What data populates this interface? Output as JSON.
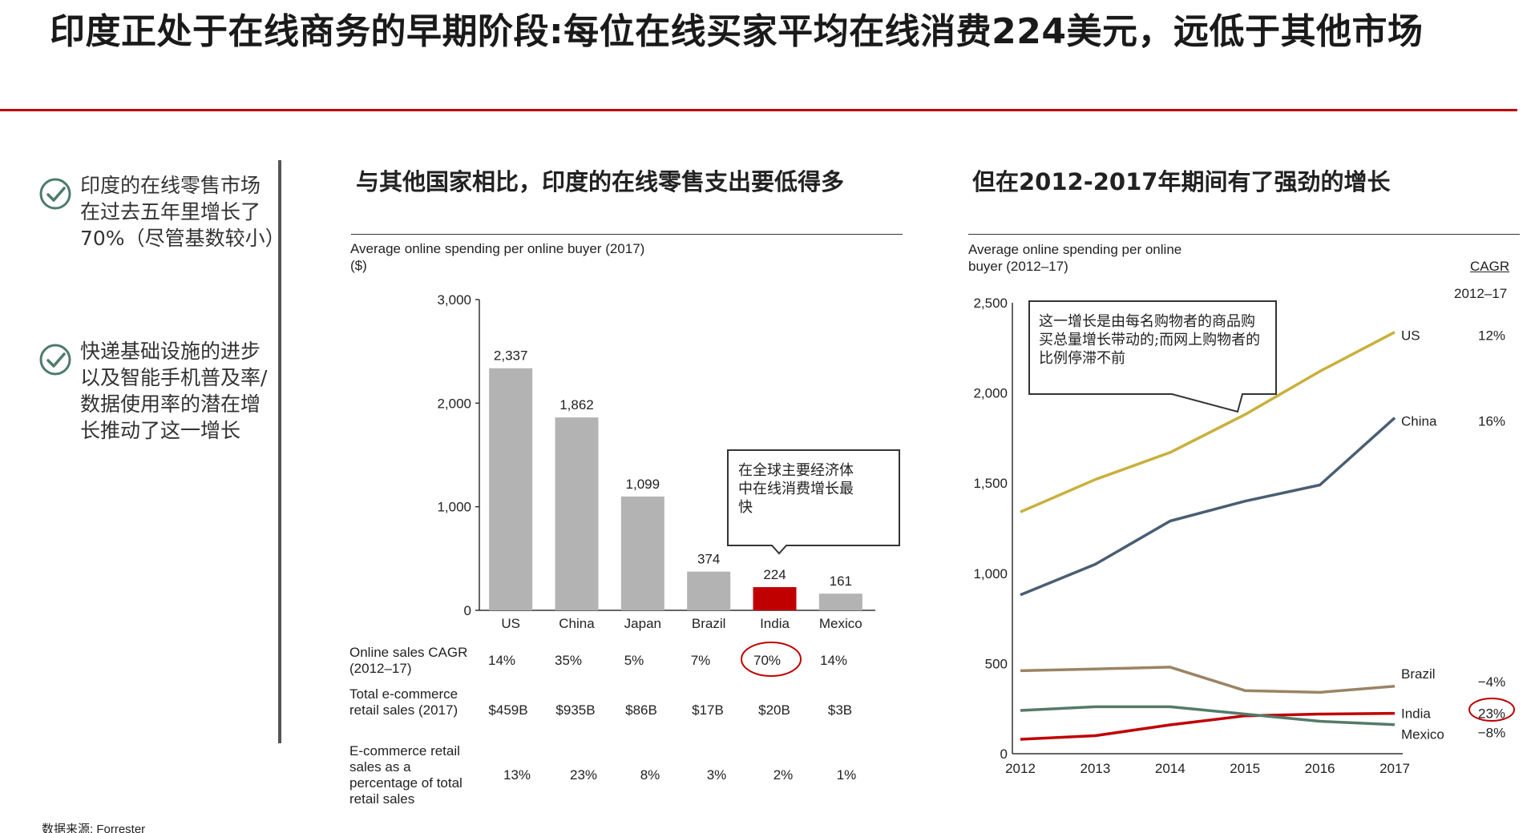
{
  "page": {
    "title": "印度正处于在线商务的早期阶段:每位在线买家平均在线消费224美元，远低于其他市场",
    "source": "数据来源: Forrester"
  },
  "left": {
    "points": [
      "印度的在线零售市场在过去五年里增长了70%（尽管基数较小）",
      "快递基础设施的进步以及智能手机普及率/数据使用率的潜在增长推动了这一增长"
    ]
  },
  "colors": {
    "accent": "#c00000",
    "bar": "#b3b3b3",
    "us": "#c9b03a",
    "china": "#4a5e72",
    "brazil": "#9a8464",
    "mexico": "#557a6a",
    "india": "#c00000"
  },
  "bar_section": {
    "heading": "与其他国家相比，印度的在线零售支出要低得多",
    "subtitle_line1": "Average online spending per online buyer (2017)",
    "subtitle_line2": "($)",
    "callout": "在全球主要经济体中在线消费增长最快",
    "table": {
      "rows": [
        {
          "label": "Online sales CAGR (2012–17)",
          "values": [
            "14%",
            "35%",
            "5%",
            "7%",
            "70%",
            "14%"
          ]
        },
        {
          "label": "Total e-commerce retail sales (2017)",
          "values": [
            "$459B",
            "$935B",
            "$86B",
            "$17B",
            "$20B",
            "$3B"
          ]
        },
        {
          "label": "E-commerce retail sales as a percentage of total retail sales",
          "values": [
            "13%",
            "23%",
            "8%",
            "3%",
            "2%",
            "1%"
          ]
        }
      ]
    }
  },
  "line_section": {
    "heading": "但在2012-2017年期间有了强劲的增长",
    "subtitle_line1": "Average online spending per online",
    "subtitle_line2": "buyer (2012–17)",
    "cagr_header": "CAGR",
    "cagr_period": "2012–17",
    "callout": "这一增长是由每名购物者的商品购买总量增长带动的;而网上购物者的比例停滞不前"
  },
  "chart_data": [
    {
      "type": "bar",
      "title": "Average online spending per online buyer (2017)",
      "ylabel": "($)",
      "categories": [
        "US",
        "China",
        "Japan",
        "Brazil",
        "India",
        "Mexico"
      ],
      "values": [
        2337,
        1862,
        1099,
        374,
        224,
        161
      ],
      "value_labels": [
        "2,337",
        "1,862",
        "1,099",
        "374",
        "224",
        "161"
      ],
      "highlight": "India",
      "ylim": [
        0,
        3000
      ],
      "yticks": [
        0,
        1000,
        2000,
        3000
      ],
      "ytick_labels": [
        "0",
        "1,000",
        "2,000",
        "3,000"
      ]
    },
    {
      "type": "line",
      "title": "Average online spending per online buyer (2012–17)",
      "x": [
        2012,
        2013,
        2014,
        2015,
        2016,
        2017
      ],
      "ylim": [
        0,
        2500
      ],
      "yticks": [
        0,
        500,
        1000,
        1500,
        2000,
        2500
      ],
      "ytick_labels": [
        "0",
        "500",
        "1,000",
        "1,500",
        "2,000",
        "2,500"
      ],
      "series": [
        {
          "name": "US",
          "values": [
            1340,
            1520,
            1670,
            1880,
            2120,
            2337
          ],
          "cagr": "12%"
        },
        {
          "name": "China",
          "values": [
            880,
            1050,
            1290,
            1400,
            1490,
            1862
          ],
          "cagr": "16%"
        },
        {
          "name": "Brazil",
          "values": [
            460,
            470,
            480,
            350,
            340,
            374
          ],
          "cagr": "−4%"
        },
        {
          "name": "India",
          "values": [
            80,
            100,
            160,
            210,
            220,
            224
          ],
          "cagr": "23%"
        },
        {
          "name": "Mexico",
          "values": [
            240,
            260,
            260,
            220,
            180,
            161
          ],
          "cagr": "−8%"
        }
      ]
    }
  ]
}
